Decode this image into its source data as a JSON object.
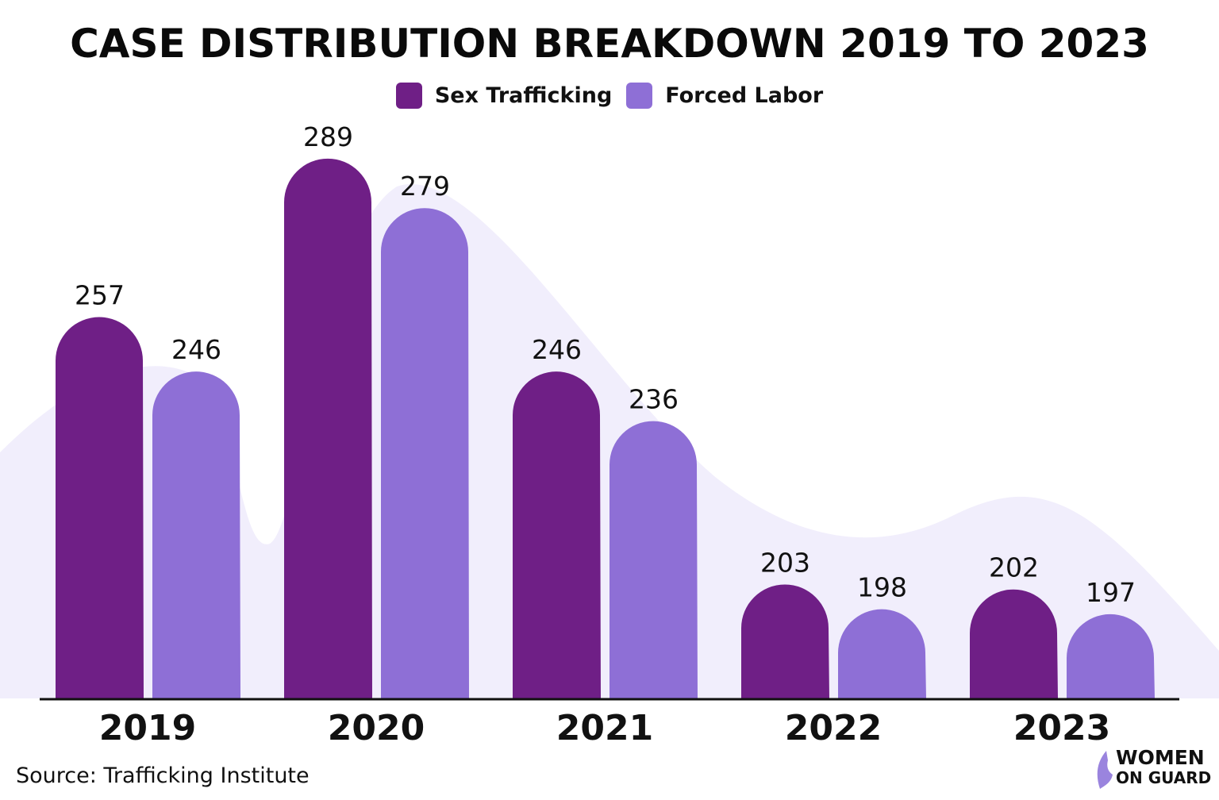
{
  "chart_data": {
    "type": "bar",
    "title": "CASE DISTRIBUTION BREAKDOWN 2019 TO 2023",
    "categories": [
      "2019",
      "2020",
      "2021",
      "2022",
      "2023"
    ],
    "series": [
      {
        "name": "Sex Trafficking",
        "values": [
          257,
          289,
          246,
          203,
          202
        ],
        "color": "#6f1f86"
      },
      {
        "name": "Forced Labor",
        "values": [
          246,
          279,
          236,
          198,
          197
        ],
        "color": "#8e6fd6"
      }
    ],
    "xlabel": "",
    "ylabel": "",
    "grid": false,
    "legend_position": "top-center",
    "background_wave_color": "#f1eefc"
  },
  "source": "Source: Trafficking Institute",
  "logo": {
    "line1": "WOMEN",
    "line2": "ON GUARD",
    "accent": "#7b3fb8"
  }
}
